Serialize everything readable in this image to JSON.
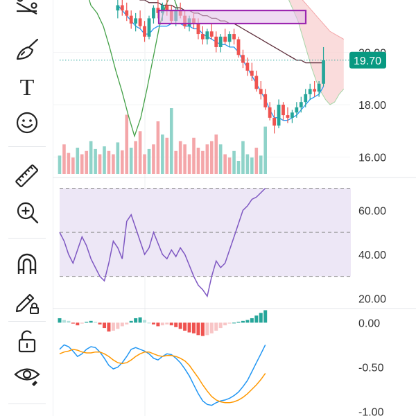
{
  "toolbar": {
    "tools": [
      {
        "icon": "trend-line-icon"
      },
      {
        "icon": "brush-icon"
      },
      {
        "icon": "text-icon",
        "glyph": "T"
      },
      {
        "icon": "emoji-icon"
      },
      {
        "icon": "ruler-icon"
      },
      {
        "icon": "zoom-in-icon"
      },
      {
        "icon": "magnet-icon"
      },
      {
        "icon": "lock-drawing-icon"
      },
      {
        "icon": "unlock-icon"
      },
      {
        "icon": "visibility-icon"
      }
    ]
  },
  "colors": {
    "up": "#26a69a",
    "down": "#ef5350",
    "up_volume": "#8fd3c9",
    "down_volume": "#f4a6a9",
    "rsi": "#7e57c2",
    "rsi_band": "#ede7f6",
    "macd": "#2196f3",
    "signal": "#ff9800",
    "bb_upper": "#5d2d3a",
    "bb_lower": "#2196f3",
    "ichimoku_span": "#43a047",
    "cloud": "#f8d0d0",
    "box_border": "#9c27b0",
    "box_fill": "#e1bee7",
    "price_tag": "#089981",
    "price_line": "#26a69a"
  },
  "price_tag": {
    "label": "19.70",
    "value": 19.7
  },
  "chart_data": [
    {
      "type": "candlestick",
      "panel": "price",
      "y_tick_labels": [
        "20.00",
        "18.00",
        "16.00"
      ],
      "y_ticks": [
        20,
        18,
        16
      ],
      "ylim": [
        15.35,
        22.0
      ],
      "last_price": 19.7,
      "candles": [
        [
          21.6,
          22.1,
          21.3,
          21.8
        ],
        [
          21.8,
          22.0,
          21.4,
          21.6
        ],
        [
          21.6,
          21.9,
          21.2,
          21.4
        ],
        [
          21.4,
          21.6,
          20.9,
          21.1
        ],
        [
          21.1,
          21.5,
          20.8,
          21.3
        ],
        [
          21.3,
          21.6,
          20.9,
          21.0
        ],
        [
          21.0,
          21.2,
          20.4,
          20.6
        ],
        [
          20.6,
          21.4,
          20.5,
          21.3
        ],
        [
          21.3,
          21.8,
          21.1,
          21.7
        ],
        [
          21.7,
          22.0,
          21.3,
          21.5
        ],
        [
          21.5,
          21.9,
          21.2,
          21.8
        ],
        [
          21.8,
          22.0,
          21.4,
          21.6
        ],
        [
          21.6,
          21.8,
          21.1,
          21.2
        ],
        [
          21.2,
          21.7,
          21.0,
          21.6
        ],
        [
          21.6,
          21.9,
          21.3,
          21.4
        ],
        [
          21.4,
          21.6,
          20.9,
          21.0
        ],
        [
          21.0,
          21.4,
          20.8,
          21.3
        ],
        [
          21.3,
          21.5,
          20.9,
          21.1
        ],
        [
          21.1,
          21.3,
          20.5,
          20.7
        ],
        [
          20.7,
          21.0,
          20.3,
          20.5
        ],
        [
          20.5,
          20.9,
          20.3,
          20.8
        ],
        [
          20.8,
          21.1,
          20.5,
          20.6
        ],
        [
          20.6,
          20.8,
          20.0,
          20.2
        ],
        [
          20.2,
          20.7,
          20.0,
          20.6
        ],
        [
          20.6,
          20.9,
          20.3,
          20.4
        ],
        [
          20.4,
          20.8,
          20.2,
          20.7
        ],
        [
          20.7,
          20.9,
          20.3,
          20.5
        ],
        [
          20.5,
          20.6,
          19.8,
          19.9
        ],
        [
          19.9,
          20.1,
          19.4,
          19.6
        ],
        [
          19.6,
          19.8,
          19.1,
          19.3
        ],
        [
          19.3,
          19.6,
          18.9,
          19.1
        ],
        [
          19.1,
          19.3,
          18.5,
          18.6
        ],
        [
          18.6,
          18.9,
          18.2,
          18.4
        ],
        [
          18.4,
          18.6,
          17.8,
          17.9
        ],
        [
          17.9,
          18.1,
          17.4,
          17.5
        ],
        [
          17.5,
          17.8,
          16.9,
          17.2
        ],
        [
          17.2,
          18.2,
          17.1,
          18.0
        ],
        [
          18.0,
          18.1,
          17.4,
          17.6
        ],
        [
          17.6,
          17.9,
          17.3,
          17.5
        ],
        [
          17.5,
          17.8,
          17.3,
          17.7
        ],
        [
          17.7,
          18.1,
          17.5,
          17.9
        ],
        [
          17.9,
          18.3,
          17.7,
          18.1
        ],
        [
          18.1,
          18.6,
          17.9,
          18.4
        ],
        [
          18.4,
          18.8,
          18.2,
          18.6
        ],
        [
          18.6,
          18.9,
          18.3,
          18.5
        ],
        [
          18.5,
          18.9,
          18.3,
          18.8
        ],
        [
          18.8,
          20.2,
          18.7,
          19.7
        ]
      ],
      "volume": [
        0.28,
        0.45,
        0.32,
        0.25,
        0.4,
        0.3,
        0.35,
        0.5,
        0.38,
        0.3,
        0.42,
        0.35,
        0.3,
        0.48,
        0.36,
        0.9,
        0.4,
        0.5,
        0.65,
        0.3,
        0.38,
        0.45,
        0.8,
        0.6,
        0.55,
        1.0,
        0.35,
        0.5,
        0.45,
        0.3,
        0.55,
        0.4,
        0.35,
        0.45,
        0.5,
        0.6,
        0.45,
        0.3,
        0.25,
        0.35,
        0.2,
        0.5,
        0.3,
        0.25,
        0.4,
        0.28,
        0.72
      ],
      "bollinger_upper": [
        22.3,
        22.3,
        22.2,
        22.1,
        22.1,
        22.0,
        22.0,
        21.9,
        21.9,
        21.9,
        21.8,
        21.8,
        21.8,
        21.7,
        21.7,
        21.6,
        21.6,
        21.5,
        21.5,
        21.4,
        21.4,
        21.3,
        21.3,
        21.2,
        21.2,
        21.1,
        21.1,
        21.0,
        20.9,
        20.8,
        20.7,
        20.6,
        20.5,
        20.4,
        20.3,
        20.2,
        20.1,
        20.0,
        19.9,
        19.8,
        19.7,
        19.7,
        19.6,
        19.6,
        19.6,
        19.6,
        19.6
      ],
      "bollinger_lower": [
        21.8,
        21.6,
        21.4,
        21.2,
        21.0,
        20.9,
        20.7,
        20.7,
        20.9,
        21.0,
        21.0,
        21.0,
        21.1,
        21.1,
        21.1,
        21.0,
        21.0,
        20.9,
        20.9,
        20.7,
        20.6,
        20.5,
        20.4,
        20.3,
        20.3,
        20.2,
        20.2,
        20.0,
        19.7,
        19.4,
        19.1,
        18.8,
        18.5,
        18.2,
        17.8,
        17.5,
        17.5,
        17.4,
        17.4,
        17.5,
        17.6,
        17.8,
        18.0,
        18.2,
        18.3,
        18.4,
        18.7
      ],
      "ichimoku_span": [
        null,
        null,
        null,
        null,
        null,
        null,
        null,
        null,
        null,
        null,
        null,
        null,
        null,
        null,
        null,
        null,
        null,
        null,
        null,
        null,
        null,
        null,
        null,
        null,
        null,
        null,
        null,
        null,
        null,
        null,
        null,
        null,
        null,
        null,
        null,
        null,
        null,
        null,
        null,
        null,
        null,
        null,
        null,
        null,
        null,
        null,
        null
      ],
      "box": {
        "start_index": 14,
        "end_index": 65,
        "top": 21.6,
        "bottom": 21.1
      },
      "cloud_top": [
        22.6,
        22.5,
        22.4,
        22.2,
        22.0,
        21.8,
        21.6,
        21.4,
        21.2,
        21.0,
        20.8,
        20.7,
        20.6,
        20.5
      ],
      "cloud_bottom": [
        22.2,
        22.0,
        21.6,
        21.2,
        20.6,
        20.0,
        19.4,
        18.9,
        18.5,
        18.2,
        18.0,
        18.1,
        18.4,
        18.6
      ]
    },
    {
      "type": "line",
      "panel": "rsi",
      "y_tick_labels": [
        "60.00",
        "40.00",
        "20.00"
      ],
      "y_ticks": [
        60,
        40,
        20
      ],
      "ylim": [
        17,
        73
      ],
      "bands": [
        70,
        50,
        30
      ],
      "values": [
        50,
        46,
        40,
        36,
        42,
        48,
        44,
        38,
        34,
        30,
        28,
        36,
        46,
        43,
        38,
        55,
        58,
        52,
        46,
        40,
        43,
        50,
        45,
        40,
        38,
        42,
        39,
        43,
        40,
        35,
        30,
        26,
        24,
        21,
        30,
        37,
        34,
        36,
        42,
        48,
        54,
        60,
        62,
        65,
        66,
        68,
        70
      ]
    },
    {
      "type": "bar+line",
      "panel": "macd",
      "y_tick_labels": [
        "0.00",
        "-0.50",
        "-1.00"
      ],
      "y_ticks": [
        0,
        -0.5,
        -1.0
      ],
      "ylim": [
        -1.05,
        0.12
      ],
      "histogram": [
        0.05,
        0.03,
        0.02,
        -0.01,
        -0.03,
        -0.01,
        0.01,
        0.02,
        0.01,
        -0.02,
        -0.06,
        -0.1,
        -0.09,
        -0.07,
        -0.04,
        -0.02,
        0.02,
        0.05,
        0.06,
        0.03,
        0.0,
        -0.02,
        -0.04,
        -0.03,
        -0.02,
        -0.03,
        -0.05,
        -0.07,
        -0.09,
        -0.11,
        -0.12,
        -0.14,
        -0.15,
        -0.14,
        -0.12,
        -0.09,
        -0.06,
        -0.03,
        -0.01,
        0.0,
        0.01,
        0.02,
        0.03,
        0.05,
        0.08,
        0.11,
        0.14
      ],
      "macd": [
        -0.3,
        -0.25,
        -0.27,
        -0.32,
        -0.38,
        -0.35,
        -0.3,
        -0.27,
        -0.28,
        -0.33,
        -0.4,
        -0.48,
        -0.52,
        -0.5,
        -0.45,
        -0.38,
        -0.3,
        -0.28,
        -0.3,
        -0.32,
        -0.35,
        -0.4,
        -0.42,
        -0.38,
        -0.35,
        -0.36,
        -0.4,
        -0.45,
        -0.52,
        -0.6,
        -0.7,
        -0.8,
        -0.88,
        -0.92,
        -0.93,
        -0.9,
        -0.88,
        -0.87,
        -0.85,
        -0.82,
        -0.78,
        -0.72,
        -0.65,
        -0.55,
        -0.45,
        -0.35,
        -0.25
      ],
      "signal": [
        -0.35,
        -0.33,
        -0.32,
        -0.3,
        -0.31,
        -0.33,
        -0.34,
        -0.34,
        -0.33,
        -0.33,
        -0.35,
        -0.38,
        -0.42,
        -0.45,
        -0.46,
        -0.45,
        -0.42,
        -0.38,
        -0.35,
        -0.33,
        -0.33,
        -0.35,
        -0.37,
        -0.38,
        -0.37,
        -0.37,
        -0.38,
        -0.4,
        -0.43,
        -0.48,
        -0.55,
        -0.62,
        -0.7,
        -0.77,
        -0.83,
        -0.87,
        -0.89,
        -0.9,
        -0.9,
        -0.89,
        -0.87,
        -0.84,
        -0.8,
        -0.75,
        -0.7,
        -0.64,
        -0.57
      ]
    }
  ]
}
